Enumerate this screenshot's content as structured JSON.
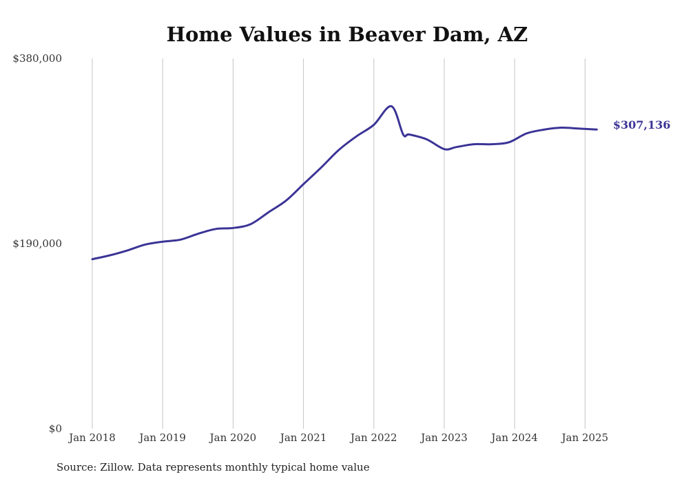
{
  "chart_data": {
    "type": "line",
    "title": "Home Values in Beaver Dam, AZ",
    "xlabel": "",
    "ylabel": "",
    "source": "Source: Zillow. Data represents monthly typical home value",
    "ylim": [
      0,
      380000
    ],
    "y_ticks": [
      {
        "value": 0,
        "label": "$0"
      },
      {
        "value": 190000,
        "label": "$190,000"
      },
      {
        "value": 380000,
        "label": "$380,000"
      }
    ],
    "x_ticks": [
      {
        "value": 2018,
        "label": "Jan 2018"
      },
      {
        "value": 2019,
        "label": "Jan 2019"
      },
      {
        "value": 2020,
        "label": "Jan 2020"
      },
      {
        "value": 2021,
        "label": "Jan 2021"
      },
      {
        "value": 2022,
        "label": "Jan 2022"
      },
      {
        "value": 2023,
        "label": "Jan 2023"
      },
      {
        "value": 2024,
        "label": "Jan 2024"
      },
      {
        "value": 2025,
        "label": "Jan 2025"
      }
    ],
    "grid": {
      "vertical": true,
      "horizontal": false
    },
    "end_label": "$307,136",
    "colors": {
      "line": "#3b3496",
      "grid": "#c4c4c4"
    },
    "series": [
      {
        "x": [
          "2018-01",
          "2018-04",
          "2018-07",
          "2018-10",
          "2019-01",
          "2019-04",
          "2019-07",
          "2019-10",
          "2020-01",
          "2020-04",
          "2020-07",
          "2020-10",
          "2021-01",
          "2021-04",
          "2021-07",
          "2021-10",
          "2022-01",
          "2022-04",
          "2022-06",
          "2022-07",
          "2022-10",
          "2023-01",
          "2023-03",
          "2023-06",
          "2023-09",
          "2023-12",
          "2024-03",
          "2024-06",
          "2024-09",
          "2024-12",
          "2025-03"
        ],
        "y": [
          174000,
          178000,
          183000,
          189000,
          192000,
          194000,
          200000,
          205000,
          206000,
          210000,
          222000,
          234000,
          251000,
          268000,
          286000,
          300000,
          312000,
          331000,
          302000,
          302000,
          297000,
          287000,
          289000,
          292000,
          292000,
          294000,
          303000,
          307000,
          309000,
          308000,
          307136
        ]
      }
    ]
  }
}
